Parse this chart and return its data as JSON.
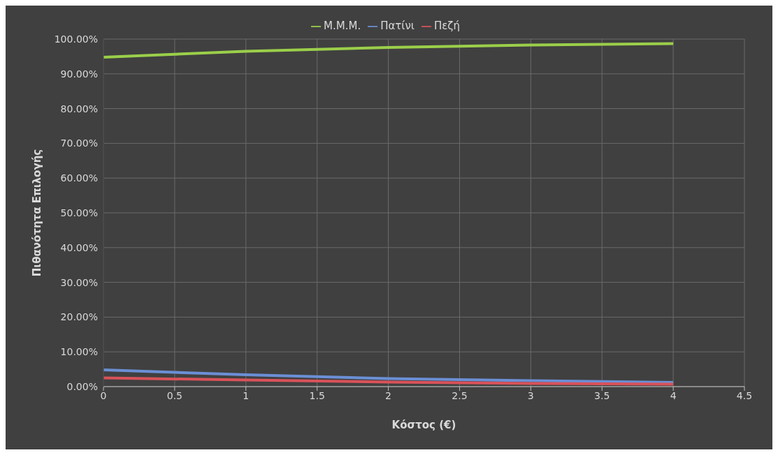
{
  "chart_data": {
    "type": "line",
    "xlabel": "Κόστος (€)",
    "ylabel": "Πιθανότητα Επιλογής",
    "x": [
      0,
      1,
      2,
      3,
      4
    ],
    "series": [
      {
        "name": "Πατίνι",
        "color": "#6b8fd6",
        "values": [
          4.8,
          3.4,
          2.3,
          1.7,
          1.2
        ]
      },
      {
        "name": "Πεζή",
        "color": "#d9525a",
        "values": [
          2.5,
          1.9,
          1.3,
          0.9,
          0.7
        ]
      },
      {
        "name": "Μ.Μ.Μ.",
        "color": "#9bcf4a",
        "values": [
          94.8,
          96.5,
          97.6,
          98.3,
          98.7
        ]
      }
    ],
    "xlim": [
      0,
      4.5
    ],
    "xticks": [
      0,
      0.5,
      1,
      1.5,
      2,
      2.5,
      3,
      3.5,
      4,
      4.5
    ],
    "ylim": [
      0,
      100
    ],
    "yticks": [
      {
        "value": 0,
        "label": "0.00%"
      },
      {
        "value": 10,
        "label": "10.00%"
      },
      {
        "value": 20,
        "label": "20.00%"
      },
      {
        "value": 30,
        "label": "30.00%"
      },
      {
        "value": 40,
        "label": "40.00%"
      },
      {
        "value": 50,
        "label": "50.00%"
      },
      {
        "value": 60,
        "label": "60.00%"
      },
      {
        "value": 70,
        "label": "70.00%"
      },
      {
        "value": 80,
        "label": "80.00%"
      },
      {
        "value": 90,
        "label": "90.00%"
      },
      {
        "value": 100,
        "label": "100.00%"
      }
    ],
    "grid": true,
    "legend": "top",
    "marker": "none",
    "line_style": "solid"
  }
}
